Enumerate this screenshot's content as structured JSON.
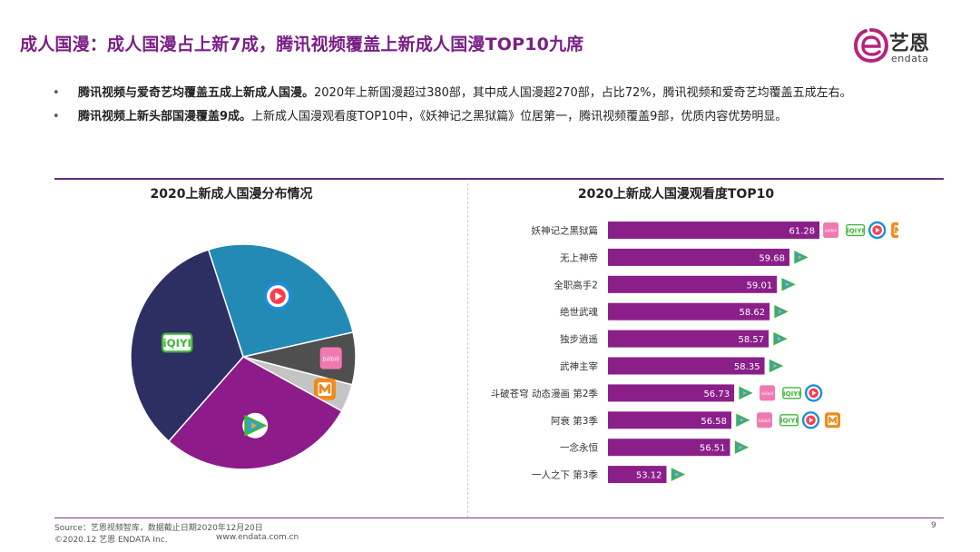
{
  "slide": {
    "title": "成人国漫：成人国漫占上新7成，腾讯视频覆盖上新成人国漫TOP10九席",
    "page_number": "9"
  },
  "logo": {
    "name_cn": "艺恩",
    "name_en": "endata"
  },
  "bullets": [
    {
      "bold": "腾讯视频与爱奇艺均覆盖五成上新成人国漫。",
      "text": "2020年上新国漫超过380部，其中成人国漫超270部，占比72%，腾讯视频和爱奇艺均覆盖五成左右。"
    },
    {
      "bold": "腾讯视频上新头部国漫覆盖9成。",
      "text": "上新成人国漫观看度TOP10中，《妖神记之黑狱篇》位居第一，腾讯视频覆盖9部，优质内容优势明显。"
    }
  ],
  "chart_data": [
    {
      "type": "pie",
      "title": "2020上新成人国漫分布情况",
      "slices": [
        {
          "platform": "youku-icon",
          "share": 0.265,
          "color": "#2389b5"
        },
        {
          "platform": "bilibili-icon",
          "share": 0.075,
          "color": "#4f4f4f"
        },
        {
          "platform": "mgtv-icon",
          "share": 0.04,
          "color": "#c4c4c4"
        },
        {
          "platform": "tencent-video-icon",
          "share": 0.285,
          "color": "#8e1b8a"
        },
        {
          "platform": "iqiyi-icon",
          "share": 0.335,
          "color": "#2d2f63"
        }
      ]
    },
    {
      "type": "bar",
      "orientation": "horizontal",
      "title": "2020上新成人国漫观看度TOP10",
      "xlim": [
        50,
        65
      ],
      "bar_color": "#8b1f8a",
      "categories": [
        "妖神记之黑狱篇",
        "无上神帝",
        "全职高手2",
        "绝世武魂",
        "独步逍遥",
        "武神主宰",
        "斗破苍穹 动态漫画 第2季",
        "阿衰 第3季",
        "一念永恒",
        "一人之下 第3季"
      ],
      "values": [
        61.28,
        59.68,
        59.01,
        58.62,
        58.57,
        58.35,
        56.73,
        56.58,
        56.51,
        53.12
      ],
      "value_labels": [
        "61.28",
        "59.68",
        "59.01",
        "58.62",
        "58.57",
        "58.35",
        "56.73",
        "56.58",
        "56.51",
        "53.12"
      ],
      "platforms": [
        [
          "bilibili-icon",
          "iqiyi-icon",
          "youku-icon",
          "mgtv-icon"
        ],
        [
          "tencent-video-icon"
        ],
        [
          "tencent-video-icon"
        ],
        [
          "tencent-video-icon"
        ],
        [
          "tencent-video-icon"
        ],
        [
          "tencent-video-icon"
        ],
        [
          "tencent-video-icon",
          "bilibili-icon",
          "iqiyi-icon",
          "youku-icon"
        ],
        [
          "tencent-video-icon",
          "bilibili-icon",
          "iqiyi-icon",
          "youku-icon",
          "mgtv-icon"
        ],
        [
          "tencent-video-icon"
        ],
        [
          "tencent-video-icon"
        ]
      ]
    }
  ],
  "platform_icons": {
    "iqiyi_text": "iQIYI",
    "bilibili_text": "bilibili",
    "colors": {
      "youku": "#1e8fd6",
      "tencent": "#2aa3df",
      "tencent_accent": "#f5a623",
      "iqiyi": "#3fb63a",
      "bilibili": "#f07ab0",
      "mgtv": "#f08a1c",
      "youku_center": "#ff3b4e"
    }
  },
  "footer": {
    "source": "Source：艺恩视频智库，数据截止日期2020年12月20日",
    "copyright": "©2020.12 艺恩 ENDATA Inc.",
    "website": "www.endata.com.cn"
  }
}
